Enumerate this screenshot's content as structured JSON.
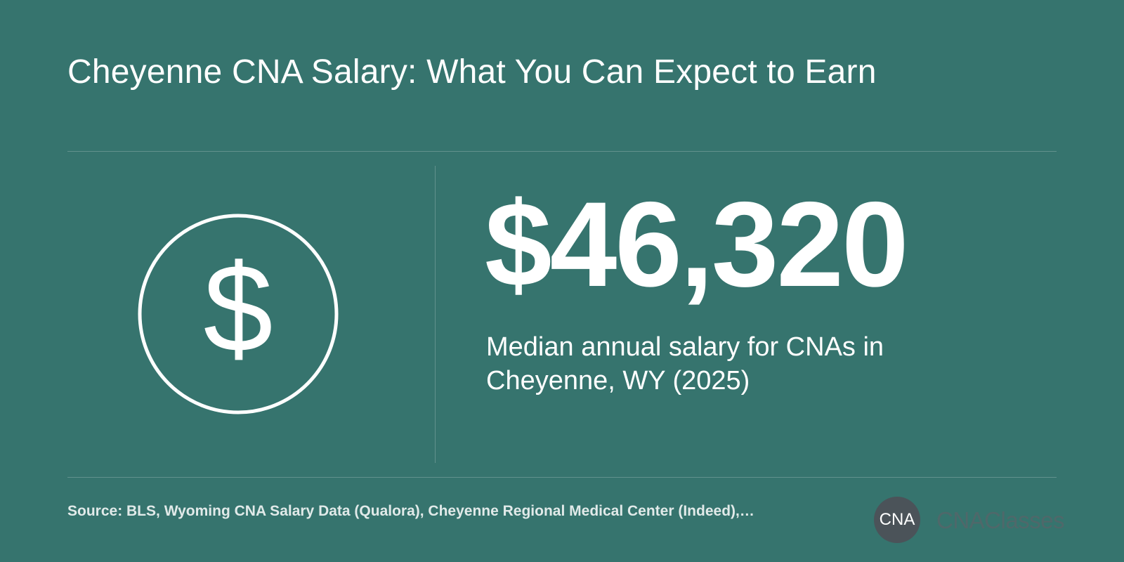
{
  "header": {
    "title": "Cheyenne CNA Salary: What You Can Expect to Earn"
  },
  "stat": {
    "icon": "dollar-circle-icon",
    "value": "$46,320",
    "description": "Median annual salary for CNAs in Cheyenne, WY (2025)"
  },
  "footer": {
    "source": "Source: BLS, Wyoming CNA Salary Data (Qualora), Cheyenne Regional Medical Center (Indeed),…",
    "logo_mark": "CNA",
    "logo_name": "CNAClasses"
  },
  "colors": {
    "background": "#36746e",
    "text": "#ffffff",
    "logo_circle": "#4b5359",
    "logo_text": "#4f686a"
  }
}
